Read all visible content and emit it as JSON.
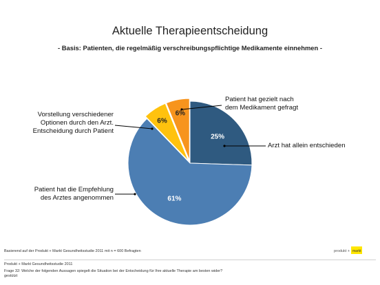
{
  "header": {
    "title": "Aktuelle Therapieentscheidung",
    "subtitle": "- Basis: Patienten, die regelmäßig verschreibungspflichtige Medikamente einnehmen -"
  },
  "chart_data": {
    "type": "pie",
    "slices": [
      {
        "label": "Arzt hat allein entschieden",
        "value": 25,
        "value_label": "25%",
        "color": "#2f5a80",
        "text_color": "#ffffff"
      },
      {
        "label": "Patient hat die Empfehlung des Arztes angenommen",
        "value": 61,
        "value_label": "61%",
        "color": "#4c7eb3",
        "text_color": "#ffffff"
      },
      {
        "label": "Vorstellung verschiedener Optionen durch den Arzt. Entscheidung durch Patient",
        "value": 6,
        "value_label": "6%",
        "color": "#ffc20e",
        "text_color": "#222222"
      },
      {
        "label": "Patient hat gezielt nach dem Medikament gefragt",
        "value": 6,
        "value_label": "6%",
        "color": "#f7941d",
        "text_color": "#222222"
      }
    ]
  },
  "callouts": {
    "top_right_line1": "Patient hat gezielt nach",
    "top_right_line2": "dem Medikament gefragt",
    "right": "Arzt hat allein entschieden",
    "left_top_line1": "Vorstellung verschiedener",
    "left_top_line2": "Optionen durch den Arzt.",
    "left_top_line3": "Entscheidung durch Patient",
    "left_bottom_line1": "Patient hat die Empfehlung",
    "left_bottom_line2": "des Arztes angenommen"
  },
  "footer": {
    "basis": "Basierend auf der Produkt + Markt Gesundheitsstudie 2011 mit n = 600 Befragten",
    "source": "Produkt + Markt Gesundheitsstudie 2011",
    "question_line1": "Frage 32: Welche der folgenden Aussagen spiegelt die Situation bei der Entscheidung für Ihre aktuelle Therapie am besten wider?",
    "question_line2": "gestützt",
    "logo_left": "produkt +",
    "logo_right": "markt"
  }
}
